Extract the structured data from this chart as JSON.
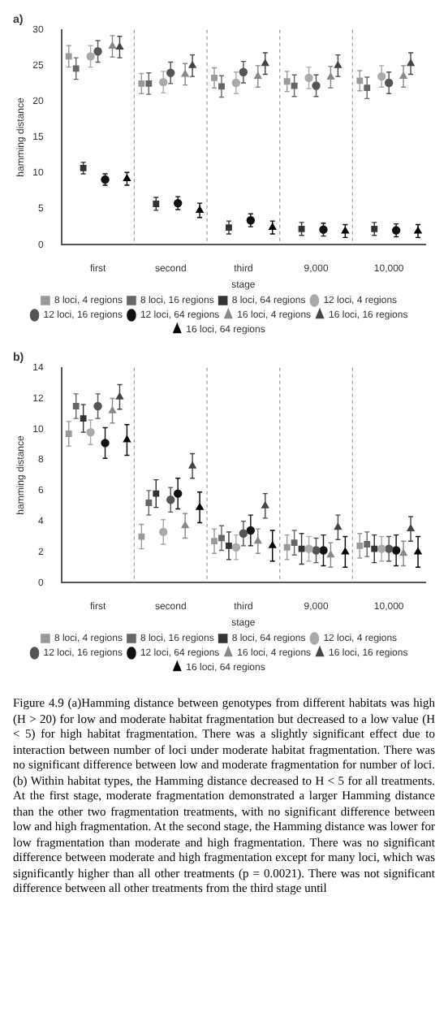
{
  "chart_data": [
    {
      "type": "scatter",
      "title": "a)",
      "xlabel": "stage",
      "ylabel": "hamming distance",
      "categories": [
        "first",
        "second",
        "third",
        "9,000",
        "10,000"
      ],
      "ylim": [
        0,
        30
      ],
      "yticks": [
        0,
        5,
        10,
        15,
        20,
        25,
        30
      ],
      "grid": "x",
      "legend": "bottom",
      "series": [
        {
          "name": "8 loci, 4 regions",
          "color": "#999999",
          "marker": "square",
          "values": [
            26.3,
            22.5,
            23.3,
            22.8,
            22.9
          ],
          "errors": [
            1.5,
            1.4,
            1.4,
            1.4,
            1.4
          ]
        },
        {
          "name": "8 loci, 16 regions",
          "color": "#666666",
          "marker": "square",
          "values": [
            24.6,
            22.5,
            22.1,
            22.2,
            21.9
          ],
          "errors": [
            1.5,
            1.5,
            1.5,
            1.5,
            1.5
          ]
        },
        {
          "name": "8 loci, 64 regions",
          "color": "#333333",
          "marker": "square",
          "values": [
            10.7,
            5.7,
            2.4,
            2.2,
            2.2
          ],
          "errors": [
            0.8,
            0.9,
            0.9,
            0.9,
            0.9
          ]
        },
        {
          "name": "12 loci, 4 regions",
          "color": "#aaaaaa",
          "marker": "circle",
          "values": [
            26.3,
            22.7,
            22.6,
            23.3,
            23.5
          ],
          "errors": [
            1.5,
            1.5,
            1.5,
            1.5,
            1.5
          ]
        },
        {
          "name": "12 loci, 16 regions",
          "color": "#555555",
          "marker": "circle",
          "values": [
            27.0,
            24.0,
            24.1,
            22.2,
            22.6
          ],
          "errors": [
            1.5,
            1.5,
            1.5,
            1.5,
            1.5
          ]
        },
        {
          "name": "12 loci, 64 regions",
          "color": "#111111",
          "marker": "circle",
          "values": [
            9.1,
            5.8,
            3.4,
            2.1,
            2.0
          ],
          "errors": [
            0.8,
            0.9,
            0.9,
            0.9,
            0.9
          ]
        },
        {
          "name": "16 loci, 4 regions",
          "color": "#888888",
          "marker": "triangle",
          "values": [
            27.7,
            23.8,
            23.5,
            23.4,
            23.5
          ],
          "errors": [
            1.5,
            1.5,
            1.5,
            1.5,
            1.5
          ]
        },
        {
          "name": "16 loci, 16 regions",
          "color": "#444444",
          "marker": "triangle",
          "values": [
            27.6,
            25.0,
            25.3,
            25.0,
            25.3
          ],
          "errors": [
            1.5,
            1.5,
            1.5,
            1.5,
            1.5
          ]
        },
        {
          "name": "16 loci, 64 regions",
          "color": "#000000",
          "marker": "triangle",
          "values": [
            9.2,
            4.8,
            2.4,
            1.9,
            1.9
          ],
          "errors": [
            0.9,
            1.0,
            0.9,
            0.9,
            0.9
          ]
        }
      ]
    },
    {
      "type": "scatter",
      "title": "b)",
      "xlabel": "stage",
      "ylabel": "hamming distance",
      "categories": [
        "first",
        "second",
        "third",
        "9,000",
        "10,000"
      ],
      "ylim": [
        0,
        14
      ],
      "yticks": [
        0,
        2,
        4,
        6,
        8,
        10,
        12,
        14
      ],
      "grid": "x",
      "legend": "bottom",
      "series": [
        {
          "name": "8 loci, 4 regions",
          "color": "#999999",
          "marker": "square",
          "values": [
            9.7,
            3.0,
            2.7,
            2.3,
            2.4
          ],
          "errors": [
            0.8,
            0.8,
            0.8,
            0.8,
            0.8
          ]
        },
        {
          "name": "8 loci, 16 regions",
          "color": "#666666",
          "marker": "square",
          "values": [
            11.5,
            5.2,
            2.9,
            2.6,
            2.5
          ],
          "errors": [
            0.8,
            0.8,
            0.8,
            0.8,
            0.8
          ]
        },
        {
          "name": "8 loci, 64 regions",
          "color": "#333333",
          "marker": "square",
          "values": [
            10.7,
            5.8,
            2.4,
            2.2,
            2.2
          ],
          "errors": [
            0.9,
            0.9,
            0.9,
            1.0,
            0.9
          ]
        },
        {
          "name": "12 loci, 4 regions",
          "color": "#aaaaaa",
          "marker": "circle",
          "values": [
            9.8,
            3.3,
            2.3,
            2.2,
            2.2
          ],
          "errors": [
            0.8,
            0.8,
            0.8,
            0.8,
            0.8
          ]
        },
        {
          "name": "12 loci, 16 regions",
          "color": "#555555",
          "marker": "circle",
          "values": [
            11.5,
            5.4,
            3.2,
            2.1,
            2.2
          ],
          "errors": [
            0.8,
            0.8,
            0.8,
            0.8,
            0.8
          ]
        },
        {
          "name": "12 loci, 64 regions",
          "color": "#111111",
          "marker": "circle",
          "values": [
            9.1,
            5.8,
            3.4,
            2.1,
            2.1
          ],
          "errors": [
            1.0,
            1.0,
            1.0,
            1.0,
            1.0
          ]
        },
        {
          "name": "16 loci, 4 regions",
          "color": "#888888",
          "marker": "triangle",
          "values": [
            11.2,
            3.7,
            2.7,
            1.8,
            1.9
          ],
          "errors": [
            0.8,
            0.8,
            0.8,
            0.8,
            0.8
          ]
        },
        {
          "name": "16 loci, 16 regions",
          "color": "#444444",
          "marker": "triangle",
          "values": [
            12.1,
            7.6,
            5.0,
            3.6,
            3.5
          ],
          "errors": [
            0.8,
            0.8,
            0.8,
            0.8,
            0.8
          ]
        },
        {
          "name": "16 loci, 64 regions",
          "color": "#000000",
          "marker": "triangle",
          "values": [
            9.3,
            4.9,
            2.4,
            2.0,
            2.0
          ],
          "errors": [
            1.0,
            1.0,
            1.0,
            1.0,
            1.0
          ]
        }
      ],
      "annotations": [
        "Figure 4.9 (a)Hamming distance between genotypes from different habitats was high (H > 20) for low and moderate habitat fragmentation but decreased to a low value (H < 5) for high habitat fragmentation. There was a slightly significant effect due to interaction between number of loci under moderate habitat fragmentation. There was no significant difference between low and moderate fragmentation for number of loci. (b) Within habitat types, the Hamming distance decreased to H < 5 for all treatments. At the first stage, moderate fragmentation demonstrated a larger Hamming distance than the other two fragmentation treatments, with no significant difference between low and high fragmentation. At the second stage, the Hamming distance was lower for low fragmentation than moderate and high fragmentation. There was no significant difference between moderate and high fragmentation except for many loci, which was significantly higher than all other treatments (p = 0.0021). There was not significant difference between all other treatments from the third stage until"
      ]
    }
  ]
}
